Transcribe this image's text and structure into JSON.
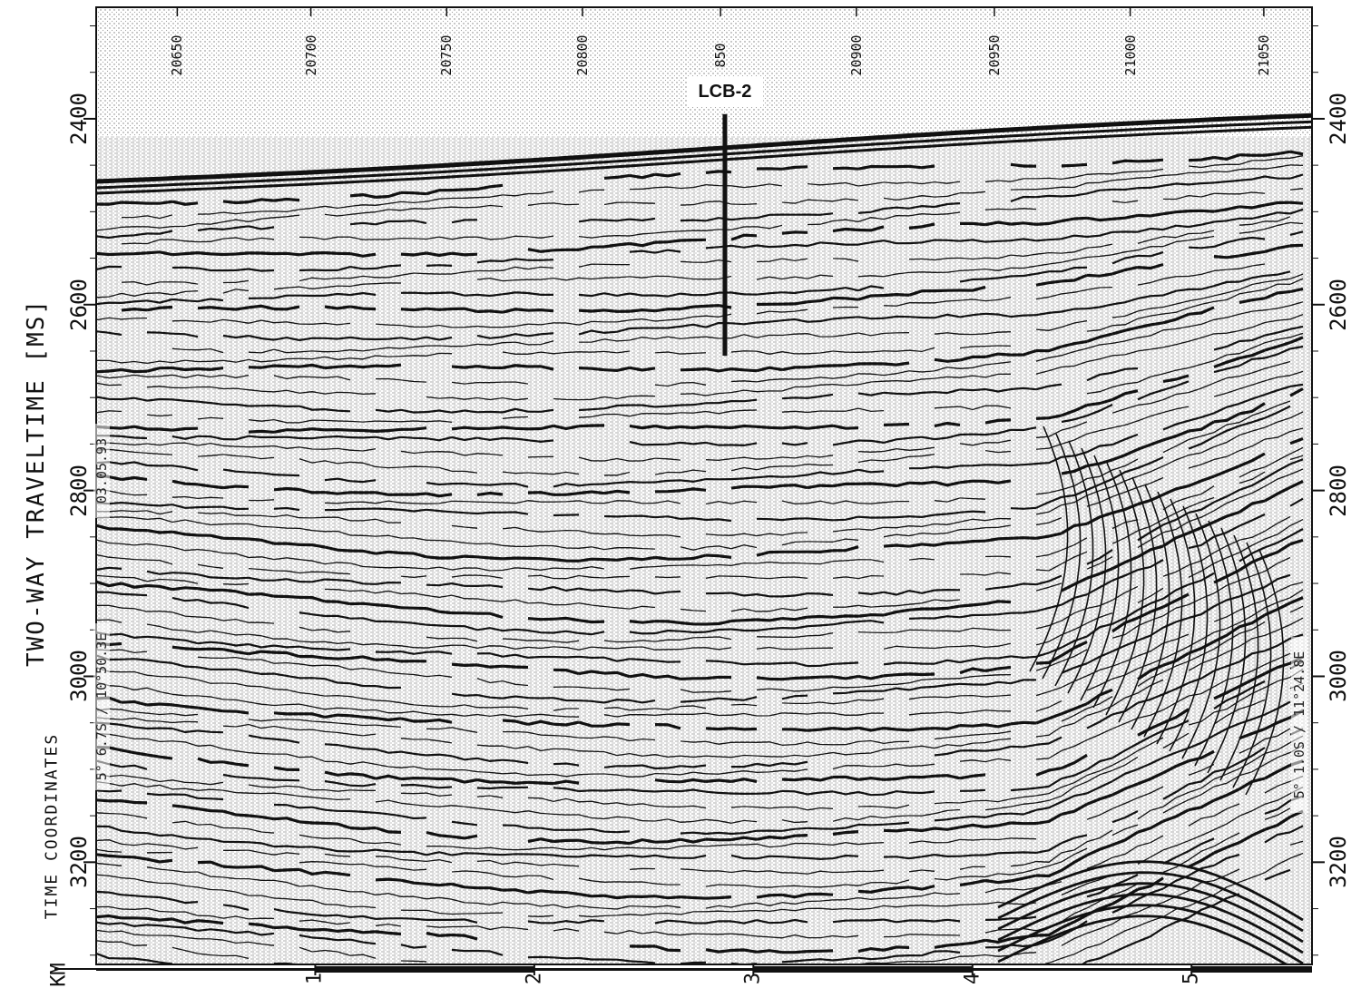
{
  "axes": {
    "y_title": "TWO-WAY TRAVELTIME [MS]",
    "y_subtitle": "TIME COORDINATES",
    "x_unit": "KM",
    "y_ticks": [
      {
        "label": "2400",
        "value": 2400
      },
      {
        "label": "2600",
        "value": 2600
      },
      {
        "label": "2800",
        "value": 2800
      },
      {
        "label": "3000",
        "value": 3000
      },
      {
        "label": "3200",
        "value": 3200
      }
    ],
    "x_ticks": [
      {
        "label": "1",
        "value": 1
      },
      {
        "label": "2",
        "value": 2
      },
      {
        "label": "3",
        "value": 3
      },
      {
        "label": "4",
        "value": 4
      },
      {
        "label": "5",
        "value": 5
      }
    ],
    "y_range": [
      2280,
      3310
    ],
    "x_range": [
      0,
      5.55
    ]
  },
  "trace_numbers": [
    {
      "label": "20650",
      "km": 0.37
    },
    {
      "label": "20700",
      "km": 0.98
    },
    {
      "label": "20750",
      "km": 1.6
    },
    {
      "label": "20800",
      "km": 2.22
    },
    {
      "label": "850",
      "km": 2.85
    },
    {
      "label": "20900",
      "km": 3.47
    },
    {
      "label": "20950",
      "km": 4.1
    },
    {
      "label": "21000",
      "km": 4.72
    },
    {
      "label": "21050",
      "km": 5.33
    }
  ],
  "well": {
    "name": "LCB-2",
    "km": 2.87,
    "top_ms": 2395,
    "bottom_ms": 2655
  },
  "coordinates": {
    "left": "5° 6.7S / 10°50.3E",
    "left_id": "03.05.93",
    "right": "5° 1.0S / 11°24.8E"
  },
  "colors": {
    "ink": "#111111",
    "paper": "#ffffff"
  }
}
